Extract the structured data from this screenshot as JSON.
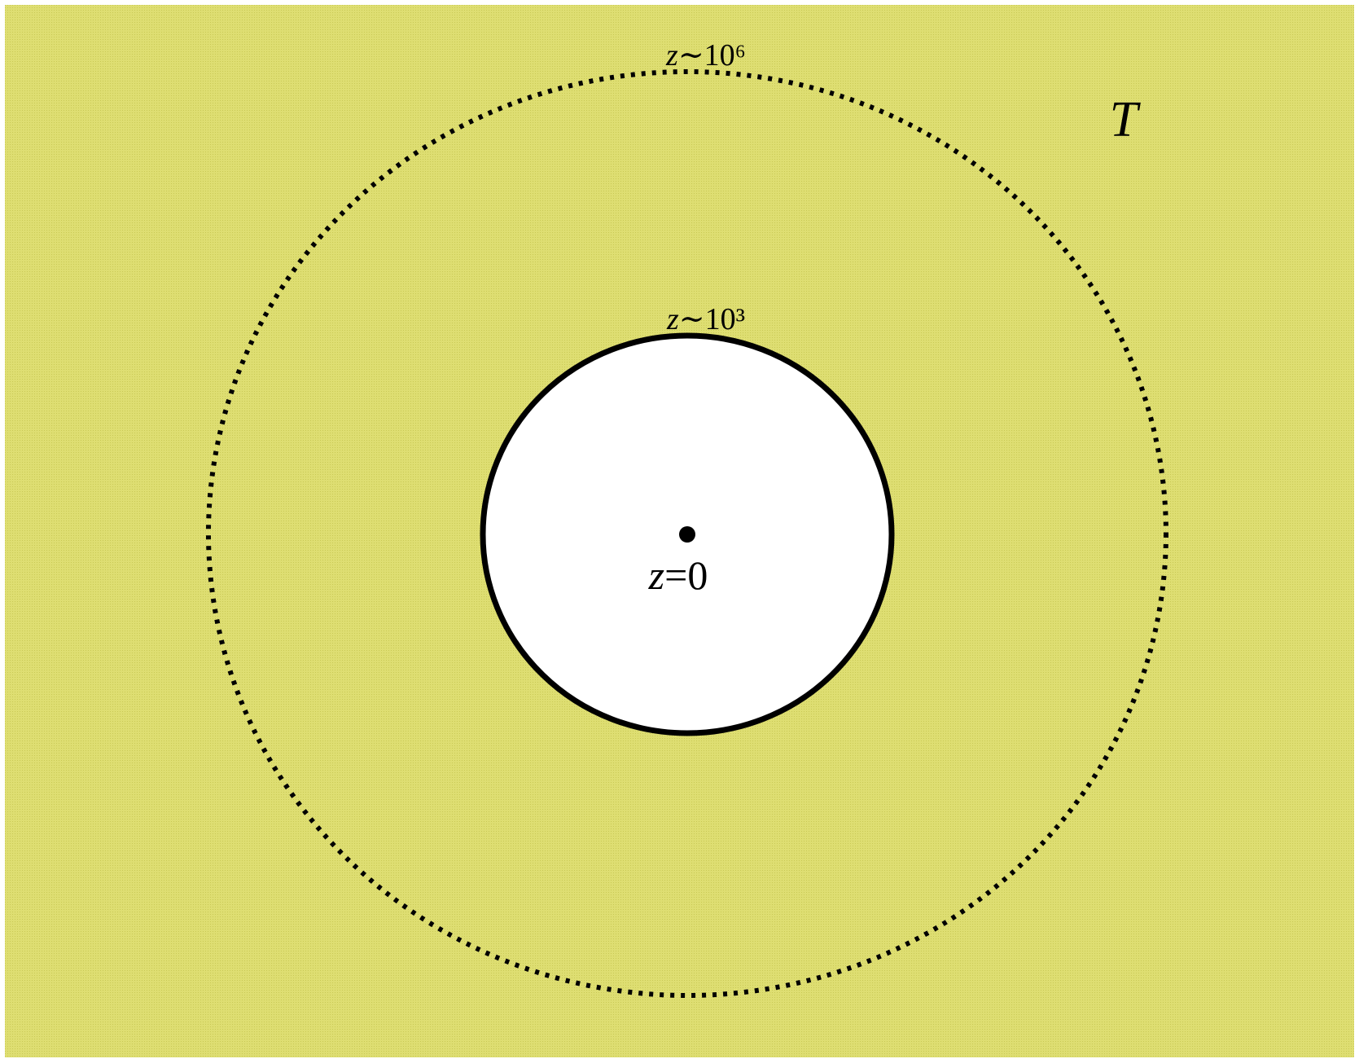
{
  "corner_label": "T",
  "outer_circle": {
    "label": {
      "variable": "z",
      "relation": "∼10⁶"
    }
  },
  "inner_circle": {
    "label": {
      "variable": "z",
      "relation": "∼10³"
    }
  },
  "center": {
    "label": {
      "variable": "z",
      "relation": "=0"
    }
  }
}
